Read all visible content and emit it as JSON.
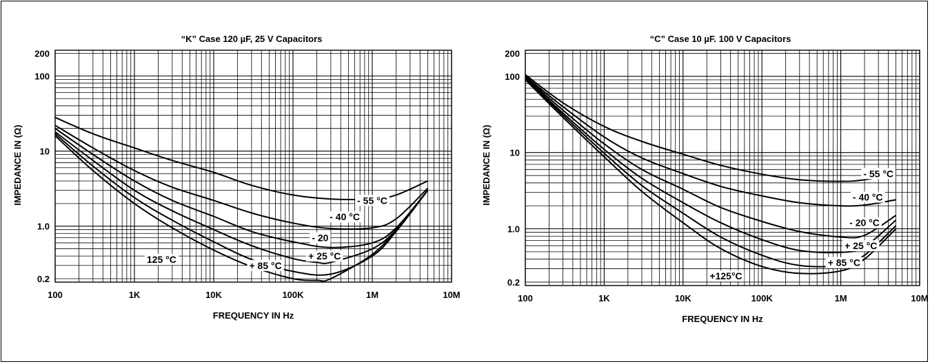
{
  "chart_data": [
    {
      "type": "line",
      "title": "“K” Case 120 µF, 25 V Capacitors",
      "xlabel": "FREQUENCY IN Hz",
      "ylabel": "IMPEDANCE IN (Ω)",
      "x_scale": "log",
      "y_scale": "log",
      "xlim": [
        100,
        10000000
      ],
      "ylim": [
        0.18,
        220
      ],
      "x_ticks": [
        {
          "v": 100,
          "t": "100"
        },
        {
          "v": 1000,
          "t": "1K"
        },
        {
          "v": 10000,
          "t": "10K"
        },
        {
          "v": 100000,
          "t": "100K"
        },
        {
          "v": 1000000,
          "t": "1M"
        },
        {
          "v": 10000000,
          "t": "10M"
        }
      ],
      "y_ticks": [
        {
          "v": 200,
          "t": "200"
        },
        {
          "v": 100,
          "t": "100"
        },
        {
          "v": 10,
          "t": "10"
        },
        {
          "v": 1,
          "t": "1.0"
        },
        {
          "v": 0.2,
          "t": "0.2"
        }
      ],
      "grid": true,
      "series": [
        {
          "name": "- 55 °C",
          "label_at": [
            1000000,
            2.2
          ],
          "x": [
            100,
            300,
            1000,
            3000,
            10000,
            30000,
            100000,
            300000,
            1000000,
            2000000,
            5000000
          ],
          "y": [
            28,
            17,
            11,
            7.5,
            5.2,
            3.5,
            2.6,
            2.3,
            2.3,
            2.6,
            4.0
          ]
        },
        {
          "name": "- 40 °C",
          "label_at": [
            450000,
            1.33
          ],
          "x": [
            100,
            300,
            1000,
            3000,
            10000,
            30000,
            100000,
            300000,
            1000000,
            2000000,
            5000000
          ],
          "y": [
            22,
            11,
            5.5,
            3.3,
            2.2,
            1.5,
            1.1,
            0.93,
            0.95,
            1.25,
            3.2
          ]
        },
        {
          "name": "- 20",
          "label_at": [
            220000,
            0.7
          ],
          "x": [
            100,
            300,
            1000,
            3000,
            10000,
            30000,
            100000,
            300000,
            1000000,
            2000000,
            5000000
          ],
          "y": [
            20,
            9,
            4,
            2.2,
            1.35,
            0.85,
            0.62,
            0.52,
            0.6,
            0.95,
            3.0
          ]
        },
        {
          "name": "+ 25 °C",
          "label_at": [
            250000,
            0.4
          ],
          "x": [
            100,
            300,
            1000,
            3000,
            10000,
            30000,
            100000,
            200000,
            300000,
            1000000,
            2000000,
            5000000
          ],
          "y": [
            18,
            7.5,
            3.0,
            1.6,
            0.9,
            0.55,
            0.37,
            0.33,
            0.33,
            0.5,
            0.9,
            3.0
          ]
        },
        {
          "name": "+ 85 °C",
          "label_at": [
            45000,
            0.3
          ],
          "x": [
            100,
            300,
            1000,
            3000,
            10000,
            30000,
            100000,
            300000,
            1000000,
            2000000,
            5000000
          ],
          "y": [
            17,
            6.3,
            2.4,
            1.2,
            0.62,
            0.36,
            0.25,
            0.23,
            0.4,
            0.85,
            3.0
          ]
        },
        {
          "name": "125 °C",
          "label_at": [
            2200,
            0.36
          ],
          "x": [
            100,
            300,
            1000,
            3000,
            10000,
            30000,
            100000,
            200000,
            300000,
            1000000,
            2000000,
            5000000
          ],
          "y": [
            16,
            5.5,
            2.0,
            0.95,
            0.48,
            0.29,
            0.2,
            0.19,
            0.2,
            0.42,
            0.9,
            3.0
          ]
        }
      ]
    },
    {
      "type": "line",
      "title": "“C” Case 10 µF. 100 V Capacitors",
      "xlabel": "FREQUENCY IN Hz",
      "ylabel": "IMPEDANCE IN (Ω)",
      "x_scale": "log",
      "y_scale": "log",
      "xlim": [
        100,
        10000000
      ],
      "ylim": [
        0.18,
        220
      ],
      "x_ticks": [
        {
          "v": 100,
          "t": "100"
        },
        {
          "v": 1000,
          "t": "1K"
        },
        {
          "v": 10000,
          "t": "10K"
        },
        {
          "v": 100000,
          "t": "100K"
        },
        {
          "v": 1000000,
          "t": "1M"
        },
        {
          "v": 10000000,
          "t": "10M"
        }
      ],
      "y_ticks": [
        {
          "v": 200,
          "t": "200"
        },
        {
          "v": 100,
          "t": "100"
        },
        {
          "v": 10,
          "t": "10"
        },
        {
          "v": 1,
          "t": "1.0"
        },
        {
          "v": 0.2,
          "t": "0.2"
        }
      ],
      "grid": true,
      "series": [
        {
          "name": "- 55 °C",
          "label_at": [
            3000000,
            5.3
          ],
          "x": [
            100,
            300,
            1000,
            3000,
            10000,
            30000,
            100000,
            300000,
            1000000,
            2000000,
            5000000
          ],
          "y": [
            105,
            45,
            22,
            14,
            9.5,
            6.8,
            5.2,
            4.4,
            4.2,
            4.4,
            5.3
          ]
        },
        {
          "name": "- 40 °C",
          "label_at": [
            2200000,
            2.6
          ],
          "x": [
            100,
            300,
            1000,
            3000,
            10000,
            30000,
            100000,
            300000,
            1000000,
            2000000,
            5000000
          ],
          "y": [
            100,
            40,
            16,
            8.5,
            5.3,
            3.6,
            2.7,
            2.2,
            2.0,
            2.05,
            2.4
          ]
        },
        {
          "name": "- 20 °C",
          "label_at": [
            2000000,
            1.2
          ],
          "x": [
            100,
            300,
            1000,
            3000,
            10000,
            30000,
            100000,
            300000,
            1000000,
            2000000,
            5000000
          ],
          "y": [
            98,
            36,
            13,
            6.0,
            3.3,
            1.9,
            1.25,
            0.92,
            0.78,
            0.82,
            1.5
          ]
        },
        {
          "name": "+ 25 °C",
          "label_at": [
            1800000,
            0.6
          ],
          "x": [
            100,
            300,
            1000,
            3000,
            10000,
            30000,
            100000,
            300000,
            1000000,
            2000000,
            5000000
          ],
          "y": [
            95,
            33,
            11,
            4.6,
            2.2,
            1.2,
            0.72,
            0.52,
            0.49,
            0.58,
            1.3
          ]
        },
        {
          "name": "+ 85 °C",
          "label_at": [
            1100000,
            0.36
          ],
          "x": [
            100,
            300,
            1000,
            3000,
            10000,
            30000,
            100000,
            300000,
            1000000,
            2000000,
            5000000
          ],
          "y": [
            92,
            31,
            9.8,
            3.7,
            1.6,
            0.78,
            0.45,
            0.33,
            0.33,
            0.45,
            1.1
          ]
        },
        {
          "name": "+125°C",
          "label_at": [
            35000,
            0.24
          ],
          "x": [
            100,
            300,
            1000,
            3000,
            10000,
            30000,
            100000,
            300000,
            1000000,
            2000000,
            5000000
          ],
          "y": [
            90,
            29,
            8.8,
            3.1,
            1.2,
            0.55,
            0.32,
            0.26,
            0.28,
            0.4,
            1.0
          ]
        }
      ]
    }
  ]
}
